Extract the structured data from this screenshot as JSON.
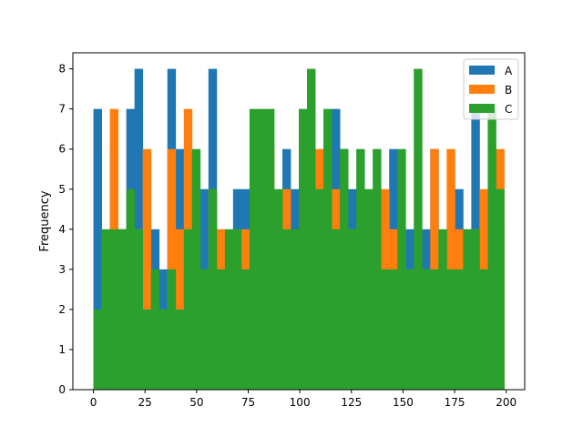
{
  "chart_data": {
    "type": "bar",
    "subtype": "overlapping-histogram",
    "ylabel": "Frequency",
    "xlabel": "",
    "x_ticks": [
      "0",
      "25",
      "50",
      "75",
      "100",
      "125",
      "150",
      "175",
      "200"
    ],
    "y_ticks": [
      "0",
      "1",
      "2",
      "3",
      "4",
      "5",
      "6",
      "7",
      "8"
    ],
    "xlim": [
      -9.95,
      208.95
    ],
    "ylim": [
      0,
      8.4
    ],
    "bin_start": 0,
    "bin_width": 3.98,
    "legend_position": "upper-right",
    "series": [
      {
        "name": "A",
        "color": "#1f77b4",
        "values": [
          7,
          3,
          6,
          4,
          7,
          8,
          4,
          4,
          3,
          8,
          6,
          3,
          4,
          5,
          8,
          3,
          2,
          5,
          5,
          3,
          4,
          5,
          3,
          6,
          5,
          6,
          2,
          2,
          6,
          7,
          6,
          5,
          5,
          4,
          4,
          3,
          6,
          4,
          4,
          4,
          4,
          6,
          2,
          4,
          5,
          3,
          7,
          3,
          5,
          4
        ]
      },
      {
        "name": "B",
        "color": "#ff7f0e",
        "values": [
          0,
          3,
          7,
          4,
          3,
          4,
          6,
          1,
          2,
          6,
          4,
          7,
          2,
          3,
          5,
          4,
          3,
          4,
          4,
          4,
          3,
          6,
          3,
          5,
          2,
          2,
          4,
          6,
          5,
          5,
          2,
          4,
          4,
          2,
          5,
          5,
          4,
          4,
          3,
          2,
          3,
          6,
          1,
          6,
          4,
          4,
          4,
          5,
          2,
          6
        ]
      },
      {
        "name": "C",
        "color": "#2ca02c",
        "values": [
          2,
          4,
          4,
          4,
          5,
          4,
          2,
          3,
          2,
          3,
          2,
          4,
          6,
          3,
          5,
          3,
          4,
          4,
          3,
          7,
          7,
          7,
          5,
          4,
          4,
          7,
          8,
          5,
          7,
          4,
          6,
          4,
          6,
          5,
          6,
          3,
          3,
          6,
          3,
          8,
          3,
          3,
          4,
          3,
          3,
          4,
          4,
          3,
          7,
          5
        ]
      }
    ]
  }
}
